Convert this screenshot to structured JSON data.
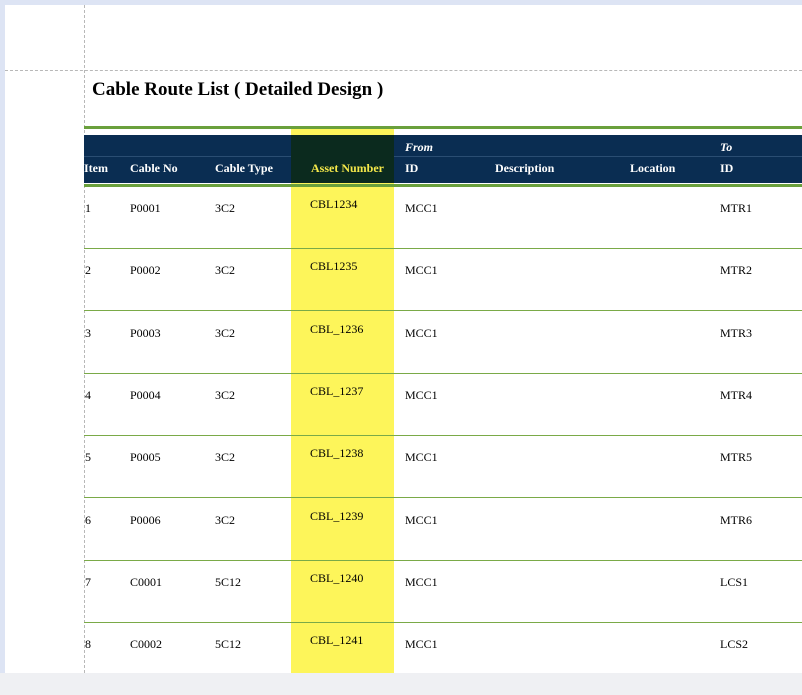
{
  "report": {
    "title": "Cable Route List ( Detailed Design )"
  },
  "header": {
    "group_from": "From",
    "group_to": "To",
    "columns": {
      "item": "Item",
      "cable_no": "Cable No",
      "cable_type": "Cable Type",
      "asset_number": "Asset Number",
      "from_id": "ID",
      "description": "Description",
      "location": "Location",
      "to_id": "ID"
    }
  },
  "rows": [
    {
      "item": "1",
      "cable_no": "P0001",
      "cable_type": "3C2",
      "asset": "CBL1234",
      "from_id": "MCC1",
      "to_id": "MTR1"
    },
    {
      "item": "2",
      "cable_no": "P0002",
      "cable_type": "3C2",
      "asset": "CBL1235",
      "from_id": "MCC1",
      "to_id": "MTR2"
    },
    {
      "item": "3",
      "cable_no": "P0003",
      "cable_type": "3C2",
      "asset": "CBL_1236",
      "from_id": "MCC1",
      "to_id": "MTR3"
    },
    {
      "item": "4",
      "cable_no": "P0004",
      "cable_type": "3C2",
      "asset": "CBL_1237",
      "from_id": "MCC1",
      "to_id": "MTR4"
    },
    {
      "item": "5",
      "cable_no": "P0005",
      "cable_type": "3C2",
      "asset": "CBL_1238",
      "from_id": "MCC1",
      "to_id": "MTR5"
    },
    {
      "item": "6",
      "cable_no": "P0006",
      "cable_type": "3C2",
      "asset": "CBL_1239",
      "from_id": "MCC1",
      "to_id": "MTR6"
    },
    {
      "item": "7",
      "cable_no": "C0001",
      "cable_type": "5C12",
      "asset": "CBL_1240",
      "from_id": "MCC1",
      "to_id": "LCS1"
    },
    {
      "item": "8",
      "cable_no": "C0002",
      "cable_type": "5C12",
      "asset": "CBL_1241",
      "from_id": "MCC1",
      "to_id": "LCS2"
    }
  ],
  "colors": {
    "header_bg": "#0a2d52",
    "highlight": "#fdf55a",
    "rule": "#6aa03c"
  }
}
